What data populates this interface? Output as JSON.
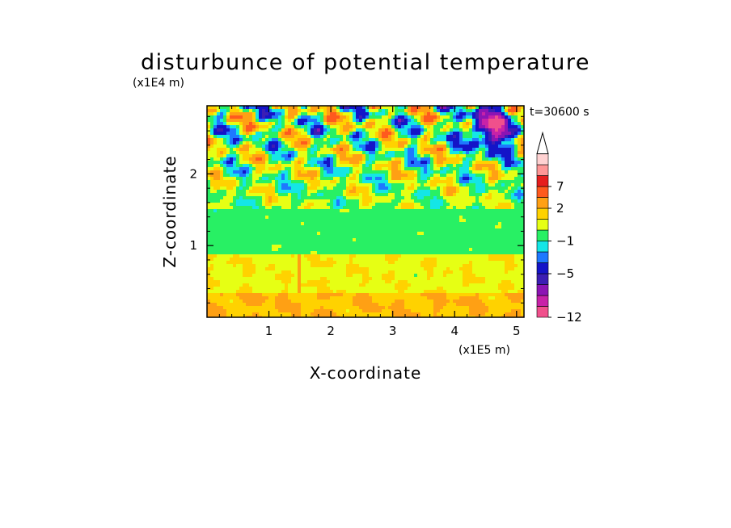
{
  "chart_data": {
    "type": "heatmap",
    "title": "disturbunce of potential temperature",
    "xlabel": "X-coordinate",
    "ylabel": "Z-coordinate",
    "x_scale_label": "(x1E5 m)",
    "y_scale_label": "(x1E4 m)",
    "time_label": "t=30600 s",
    "xlim": [
      0,
      5.12
    ],
    "ylim": [
      0,
      2.95
    ],
    "x_ticks": [
      1,
      2,
      3,
      4,
      5
    ],
    "x_tick_labels": [
      "1",
      "2",
      "3",
      "4",
      "5"
    ],
    "y_ticks": [
      1,
      2
    ],
    "y_tick_labels": [
      "1",
      "2"
    ],
    "colorbar": {
      "labels": [
        {
          "level": 7,
          "text": "7"
        },
        {
          "level": 2,
          "text": "2"
        },
        {
          "level": -1,
          "text": "−1"
        },
        {
          "level": -5,
          "text": "−5"
        },
        {
          "level": -12,
          "text": "−12"
        }
      ],
      "bins": [
        {
          "color": "#f0508c",
          "min": -12,
          "max": -10
        },
        {
          "color": "#c822a8",
          "min": -10,
          "max": -8
        },
        {
          "color": "#8c14b4",
          "min": -8,
          "max": -6
        },
        {
          "color": "#3c1eb4",
          "min": -6,
          "max": -5
        },
        {
          "color": "#1414c8",
          "min": -5,
          "max": -3
        },
        {
          "color": "#1e78ff",
          "min": -3,
          "max": -2
        },
        {
          "color": "#14e6e6",
          "min": -2,
          "max": -1
        },
        {
          "color": "#28f064",
          "min": -1,
          "max": 0
        },
        {
          "color": "#e6ff14",
          "min": 0,
          "max": 1
        },
        {
          "color": "#ffd200",
          "min": 1,
          "max": 2
        },
        {
          "color": "#ffa014",
          "min": 2,
          "max": 4
        },
        {
          "color": "#ff5a1e",
          "min": 4,
          "max": 7
        },
        {
          "color": "#e61e1e",
          "min": 7,
          "max": 10
        },
        {
          "color": "#ff9696",
          "min": 10,
          "max": 13
        },
        {
          "color": "#ffd2d2",
          "min": 13,
          "max": 16
        }
      ]
    },
    "grid": false,
    "field_regions": [
      {
        "z_range": [
          0,
          0.35
        ],
        "typical_value": 2,
        "description_level": "orange"
      },
      {
        "z_range": [
          0.35,
          0.9
        ],
        "typical_value": 0.5,
        "description_level": "yellow"
      },
      {
        "z_range": [
          0.9,
          1.55
        ],
        "typical_value": -0.5,
        "description_level": "green"
      },
      {
        "z_range": [
          1.55,
          2.95
        ],
        "typical_value": 0,
        "description_level": "mixed"
      }
    ]
  }
}
